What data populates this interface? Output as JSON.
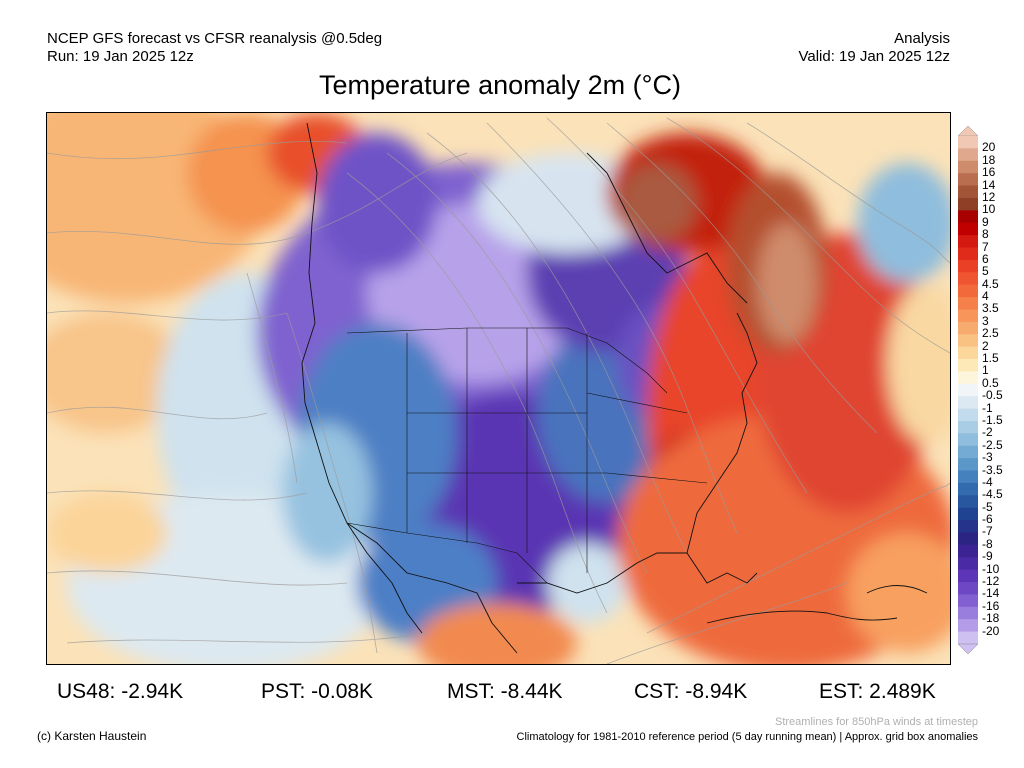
{
  "header": {
    "left_line1": "NCEP GFS forecast vs CFSR reanalysis @0.5deg",
    "left_line2": "Run: 19 Jan 2025 12z",
    "right_line1": "Analysis",
    "right_line2": "Valid: 19 Jan 2025 12z"
  },
  "title": "Temperature anomaly 2m (°C)",
  "colorbar": {
    "labels": [
      "20",
      "18",
      "16",
      "14",
      "12",
      "10",
      "9",
      "8",
      "7",
      "6",
      "5",
      "4.5",
      "4",
      "3.5",
      "3",
      "2.5",
      "2",
      "1.5",
      "1",
      "0.5",
      "-0.5",
      "-1",
      "-1.5",
      "-2",
      "-2.5",
      "-3",
      "-3.5",
      "-4",
      "-4.5",
      "-5",
      "-6",
      "-7",
      "-8",
      "-9",
      "-10",
      "-12",
      "-14",
      "-16",
      "-18",
      "-20"
    ],
    "colors": [
      "#f0c8b4",
      "#e0a88c",
      "#cf8c6c",
      "#b86e4f",
      "#a35538",
      "#8e3f25",
      "#a80000",
      "#c00000",
      "#d41a10",
      "#e02b1a",
      "#ea4025",
      "#ef5530",
      "#f26a3c",
      "#f5804a",
      "#f7955a",
      "#f8ab6e",
      "#f9c283",
      "#fbd79b",
      "#fde9b8",
      "#fdf6dc",
      "#f2f5f8",
      "#dce9f2",
      "#c3dced",
      "#a9cde5",
      "#8fbddd",
      "#74abd4",
      "#5b97c9",
      "#4581bd",
      "#336baf",
      "#2857a0",
      "#1f4390",
      "#26338a",
      "#2c2483",
      "#3b2394",
      "#4b2aa5",
      "#5c36b6",
      "#6e47c4",
      "#8260d1",
      "#9a7edd",
      "#b59ce8",
      "#cfc0f2"
    ]
  },
  "stats": {
    "us48": "US48: -2.94K",
    "pst": "PST: -0.08K",
    "mst": "MST: -8.44K",
    "cst": "CST: -8.94K",
    "est": "EST: 2.489K"
  },
  "footer": {
    "credit": "(c) Karsten Haustein",
    "streamlines": "Streamlines for 850hPa winds at timestep",
    "climatology": "Climatology for 1981-2010 reference period (5 day running mean) | Approx. grid box anomalies"
  }
}
